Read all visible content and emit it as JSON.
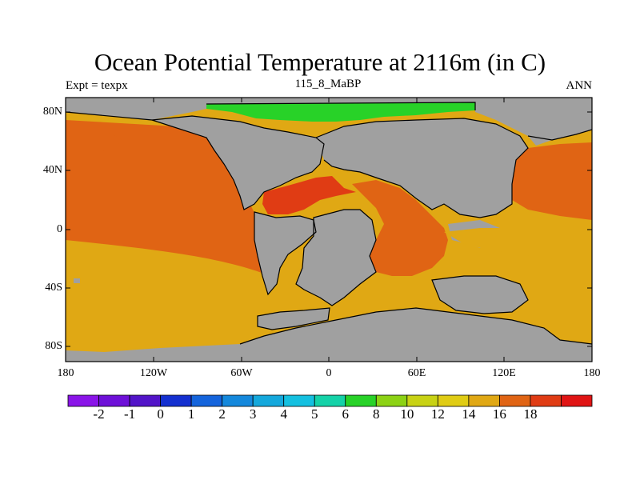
{
  "title": "Ocean Potential Temperature at 2116m (in C)",
  "subtitle_left": "Expt = texpx",
  "subtitle_center": "115_8_MaBP",
  "subtitle_right": "ANN",
  "y_ticks": [
    "80N",
    "40N",
    "0",
    "40S",
    "80S"
  ],
  "x_ticks": [
    "180",
    "120W",
    "60W",
    "0",
    "60E",
    "120E",
    "180"
  ],
  "colorbar": {
    "labels": [
      "-2",
      "-1",
      "0",
      "1",
      "2",
      "3",
      "4",
      "5",
      "6",
      "8",
      "10",
      "12",
      "14",
      "16",
      "18"
    ],
    "colors": [
      "#8a14e8",
      "#6e10d8",
      "#5214c8",
      "#1430d0",
      "#1464dc",
      "#1488dc",
      "#14a8dc",
      "#14c0e0",
      "#14d2a8",
      "#28d228",
      "#8cd214",
      "#c8d214",
      "#e0cc14",
      "#e0a814",
      "#e06414",
      "#e03c14",
      "#e01414"
    ]
  },
  "palette": {
    "land": "#a0a0a0",
    "warm_orange": "#e06414",
    "red_orange": "#e03c14",
    "gold": "#e0a814",
    "green": "#28d228",
    "coast": "#000000"
  }
}
